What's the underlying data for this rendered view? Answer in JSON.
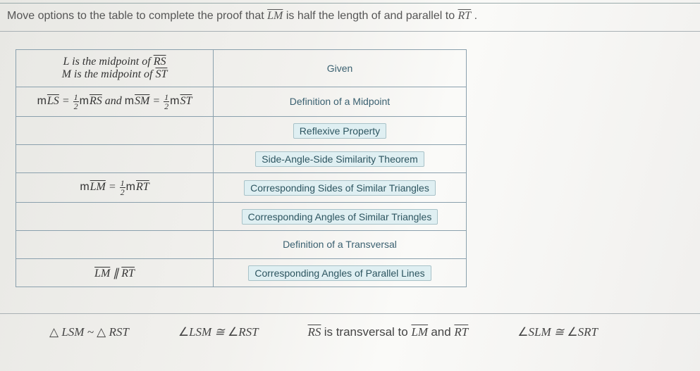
{
  "instruction_prefix": "Move options to the table to complete the proof that ",
  "instruction_seg1": "LM",
  "instruction_mid": " is half the length of and parallel to ",
  "instruction_seg2": "RT",
  "instruction_suffix": ".",
  "rows": [
    {
      "stmt_html": "<span style='font-style:italic'>L</span> is the midpoint of <span class='ov'>RS</span><br><span style='font-style:italic'>M</span> is the midpoint of <span class='ov'>ST</span>",
      "reason": "Given",
      "chip": false
    },
    {
      "stmt_html": "<span class='m'>m</span><span class='ov'>LS</span> = <span class='frac'><span class='n'>1</span><span class='d'>2</span></span><span class='m'>m</span><span class='ov'>RS</span> and <span class='m'>m</span><span class='ov'>SM</span> = <span class='frac'><span class='n'>1</span><span class='d'>2</span></span><span class='m'>m</span><span class='ov'>ST</span>",
      "reason": "Definition of a Midpoint",
      "chip": false
    },
    {
      "stmt_html": "",
      "reason": "Reflexive Property",
      "chip": true
    },
    {
      "stmt_html": "",
      "reason": "Side-Angle-Side Similarity Theorem",
      "chip": true
    },
    {
      "stmt_html": "<span class='m'>m</span><span class='ov'>LM</span> = <span class='frac'><span class='n'>1</span><span class='d'>2</span></span><span class='m'>m</span><span class='ov'>RT</span>",
      "reason": "Corresponding Sides of Similar Triangles",
      "chip": true
    },
    {
      "stmt_html": "",
      "reason": "Corresponding Angles of Similar Triangles",
      "chip": true
    },
    {
      "stmt_html": "",
      "reason": "Definition of a Transversal",
      "chip": false
    },
    {
      "stmt_html": "<span class='ov'>LM</span> ∥ <span class='ov'>RT</span>",
      "reason": "Corresponding Angles of Parallel Lines",
      "chip": true
    }
  ],
  "options": {
    "o1": "△ LSM ~ △ RST",
    "o2": "∠LSM ≅ ∠RST",
    "o3_a": "RS",
    "o3_mid": " is transversal to ",
    "o3_b": "LM",
    "o3_and": " and ",
    "o3_c": "RT",
    "o4": "∠SLM ≅ ∠SRT"
  },
  "colors": {
    "border": "#8aa0ad",
    "chip_bg": "#dfeff2",
    "chip_border": "#a8c2c8",
    "text": "#3a3a3a"
  }
}
